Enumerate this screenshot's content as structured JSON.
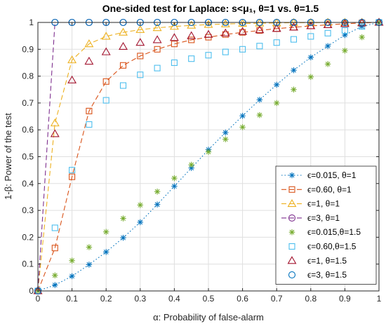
{
  "chart_data": {
    "type": "line",
    "title": "One-sided test for Laplace: s<μ₁, θ=1 vs. θ=1.5",
    "xlabel": "α: Probability of false-alarm",
    "ylabel": "1-β: Power of the test",
    "xlim": [
      0,
      1
    ],
    "ylim": [
      0,
      1
    ],
    "xticks": [
      "0",
      "0.1",
      "0.2",
      "0.3",
      "0.4",
      "0.5",
      "0.6",
      "0.7",
      "0.8",
      "0.9",
      "1"
    ],
    "yticks": [
      "0",
      "0.1",
      "0.2",
      "0.3",
      "0.4",
      "0.5",
      "0.6",
      "0.7",
      "0.8",
      "0.9",
      "1"
    ],
    "grid": true,
    "legend_position": "bottom-right",
    "colors": {
      "blue": "#0072BD",
      "orange": "#D95319",
      "yellow": "#EDB120",
      "purple": "#7E2F8E",
      "green": "#77AC30",
      "cyan": "#4DBEEE",
      "red": "#A2142F"
    },
    "series": [
      {
        "name": "ϵ=0.015, θ=1",
        "color_key": "blue",
        "line": "dotted",
        "marker": "asterisk",
        "x": [
          0,
          0.05,
          0.1,
          0.15,
          0.2,
          0.25,
          0.3,
          0.35,
          0.4,
          0.45,
          0.5,
          0.55,
          0.6,
          0.65,
          0.7,
          0.75,
          0.8,
          0.85,
          0.9,
          0.95,
          1
        ],
        "y": [
          0,
          0.022,
          0.055,
          0.098,
          0.145,
          0.198,
          0.256,
          0.322,
          0.39,
          0.458,
          0.526,
          0.59,
          0.652,
          0.712,
          0.768,
          0.822,
          0.87,
          0.912,
          0.953,
          0.985,
          1
        ]
      },
      {
        "name": "ϵ=0.60, θ=1",
        "color_key": "orange",
        "line": "dashed",
        "marker": "square",
        "x": [
          0,
          0.05,
          0.1,
          0.15,
          0.2,
          0.25,
          0.3,
          0.35,
          0.4,
          0.45,
          0.5,
          0.55,
          0.6,
          0.65,
          0.7,
          0.75,
          0.8,
          0.85,
          0.9,
          0.95,
          1
        ],
        "y": [
          0,
          0.16,
          0.425,
          0.67,
          0.78,
          0.84,
          0.875,
          0.9,
          0.92,
          0.935,
          0.945,
          0.955,
          0.963,
          0.97,
          0.977,
          0.982,
          0.987,
          0.991,
          0.995,
          0.998,
          1
        ]
      },
      {
        "name": "ϵ=1, θ=1",
        "color_key": "yellow",
        "line": "dashed",
        "marker": "triangle",
        "x": [
          0,
          0.05,
          0.1,
          0.15,
          0.2,
          0.25,
          0.3,
          0.35,
          0.4,
          0.45,
          0.5,
          0.55,
          0.6,
          0.65,
          0.7,
          0.75,
          0.8,
          0.85,
          0.9,
          0.95,
          1
        ],
        "y": [
          0,
          0.625,
          0.86,
          0.92,
          0.948,
          0.963,
          0.973,
          0.98,
          0.985,
          0.989,
          0.992,
          0.994,
          0.996,
          0.997,
          0.998,
          0.999,
          0.999,
          1,
          1,
          1,
          1
        ]
      },
      {
        "name": "ϵ=3, θ=1",
        "color_key": "purple",
        "line": "dashed",
        "marker": "circle",
        "x": [
          0,
          0.05,
          0.1,
          0.15,
          0.2,
          0.25,
          0.3,
          0.35,
          0.4,
          0.45,
          0.5,
          0.55,
          0.6,
          0.65,
          0.7,
          0.75,
          0.8,
          0.85,
          0.9,
          0.95,
          1
        ],
        "y": [
          0,
          1,
          1,
          1,
          1,
          1,
          1,
          1,
          1,
          1,
          1,
          1,
          1,
          1,
          1,
          1,
          1,
          1,
          1,
          1,
          1
        ]
      },
      {
        "name": "ϵ=0.015,θ=1.5",
        "color_key": "green",
        "line": "none",
        "marker": "asterisk",
        "x": [
          0,
          0.05,
          0.1,
          0.15,
          0.2,
          0.25,
          0.3,
          0.35,
          0.4,
          0.45,
          0.5,
          0.55,
          0.6,
          0.65,
          0.7,
          0.75,
          0.8,
          0.85,
          0.9,
          0.95,
          1
        ],
        "y": [
          0,
          0.058,
          0.113,
          0.163,
          0.22,
          0.27,
          0.32,
          0.37,
          0.42,
          0.47,
          0.518,
          0.565,
          0.61,
          0.655,
          0.7,
          0.75,
          0.797,
          0.845,
          0.895,
          0.945,
          1
        ]
      },
      {
        "name": "ϵ=0.60,θ=1.5",
        "color_key": "cyan",
        "line": "none",
        "marker": "square",
        "x": [
          0,
          0.05,
          0.1,
          0.15,
          0.2,
          0.25,
          0.3,
          0.35,
          0.4,
          0.45,
          0.5,
          0.55,
          0.6,
          0.65,
          0.7,
          0.75,
          0.8,
          0.85,
          0.9,
          0.95,
          1
        ],
        "y": [
          0,
          0.235,
          0.45,
          0.62,
          0.71,
          0.765,
          0.805,
          0.83,
          0.85,
          0.865,
          0.878,
          0.89,
          0.9,
          0.912,
          0.925,
          0.937,
          0.948,
          0.96,
          0.97,
          0.985,
          1
        ]
      },
      {
        "name": "ϵ=1, θ=1.5",
        "color_key": "red",
        "line": "none",
        "marker": "triangle",
        "x": [
          0,
          0.05,
          0.1,
          0.15,
          0.2,
          0.25,
          0.3,
          0.35,
          0.4,
          0.45,
          0.5,
          0.55,
          0.6,
          0.65,
          0.7,
          0.75,
          0.8,
          0.85,
          0.9,
          0.95,
          1
        ],
        "y": [
          0,
          0.585,
          0.785,
          0.855,
          0.89,
          0.91,
          0.925,
          0.935,
          0.943,
          0.95,
          0.955,
          0.96,
          0.966,
          0.972,
          0.977,
          0.982,
          0.987,
          0.991,
          0.995,
          0.998,
          1
        ]
      },
      {
        "name": "ϵ=3, θ=1.5",
        "color_key": "blue",
        "line": "none",
        "marker": "circle",
        "x": [
          0,
          0.05,
          0.1,
          0.15,
          0.2,
          0.25,
          0.3,
          0.35,
          0.4,
          0.45,
          0.5,
          0.55,
          0.6,
          0.65,
          0.7,
          0.75,
          0.8,
          0.85,
          0.9,
          0.95,
          1
        ],
        "y": [
          0,
          1,
          1,
          1,
          1,
          1,
          1,
          1,
          1,
          1,
          1,
          1,
          1,
          1,
          1,
          1,
          1,
          1,
          1,
          1,
          1
        ]
      }
    ]
  }
}
